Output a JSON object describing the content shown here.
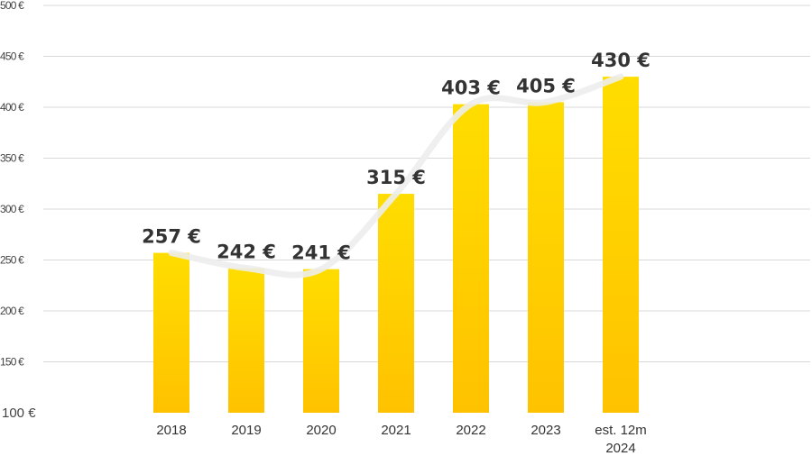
{
  "chart_data": {
    "type": "bar",
    "categories": [
      "2018",
      "2019",
      "2020",
      "2021",
      "2022",
      "2023",
      "est. 12m\n2024"
    ],
    "values": [
      257,
      242,
      241,
      315,
      403,
      405,
      430
    ],
    "data_labels": [
      "257 €",
      "242 €",
      "241 €",
      "315 €",
      "403 €",
      "405 €",
      "430 €"
    ],
    "ylim": [
      100,
      500
    ],
    "y_ticks": [
      100,
      150,
      200,
      250,
      300,
      350,
      400,
      450,
      500
    ],
    "y_tick_labels": [
      "100 €",
      "150 €",
      "200 €",
      "250 €",
      "300 €",
      "350 €",
      "400 €",
      "450 €",
      "500 €"
    ],
    "overlay_line": true,
    "grid": true,
    "legend": "none",
    "title": "",
    "xlabel": "",
    "ylabel": ""
  },
  "colors": {
    "bar_top": "#FFDD00",
    "bar_bottom": "#FFC200",
    "gridline": "#D9D9D9",
    "trend_line": "#EDEDED"
  }
}
